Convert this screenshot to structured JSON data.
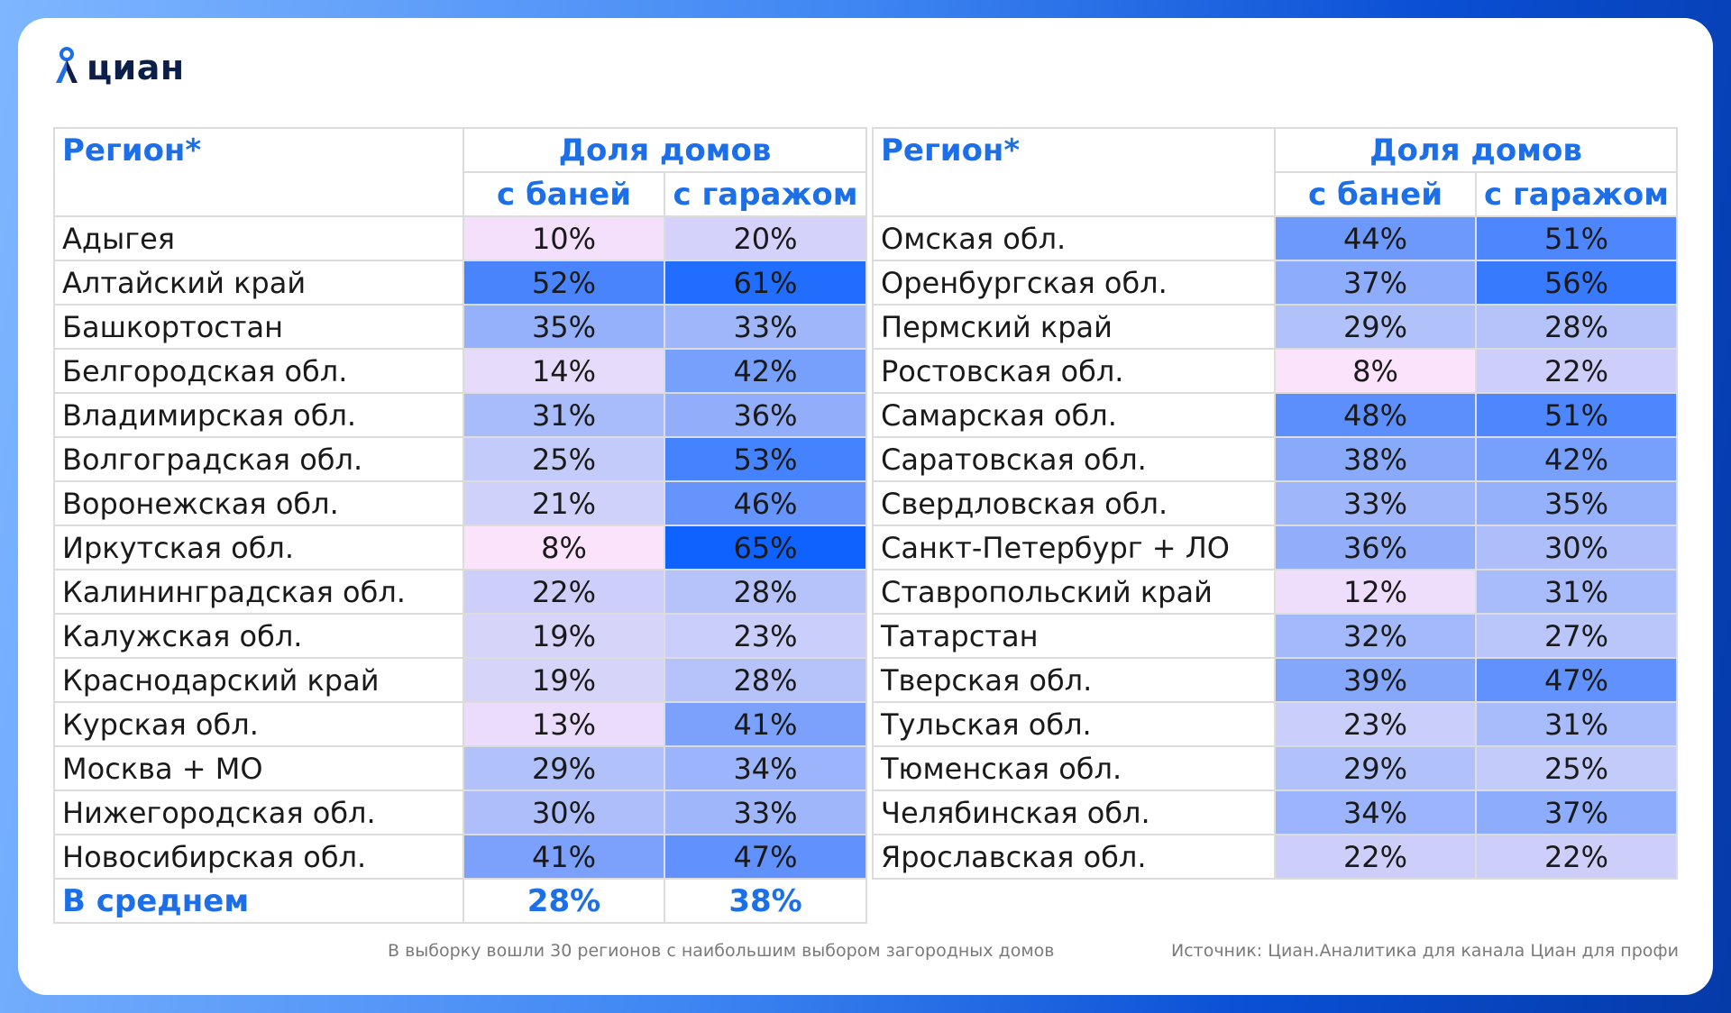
{
  "logo": {
    "text": "циан"
  },
  "header": {
    "region": "Регион*",
    "share": "Доля домов",
    "bath": "с баней",
    "garage": "с гаражом"
  },
  "chart_data": {
    "type": "table",
    "columns": [
      "Регион*",
      "с баней",
      "с гаражом"
    ],
    "group_header": "Доля домов",
    "left_rows": [
      {
        "region": "Адыгея",
        "bath": "10%",
        "garage": "20%"
      },
      {
        "region": "Алтайский край",
        "bath": "52%",
        "garage": "61%"
      },
      {
        "region": "Башкортостан",
        "bath": "35%",
        "garage": "33%"
      },
      {
        "region": "Белгородская обл.",
        "bath": "14%",
        "garage": "42%"
      },
      {
        "region": "Владимирская обл.",
        "bath": "31%",
        "garage": "36%"
      },
      {
        "region": "Волгоградская обл.",
        "bath": "25%",
        "garage": "53%"
      },
      {
        "region": "Воронежская обл.",
        "bath": "21%",
        "garage": "46%"
      },
      {
        "region": "Иркутская обл.",
        "bath": "8%",
        "garage": "65%"
      },
      {
        "region": "Калининградская обл.",
        "bath": "22%",
        "garage": "28%"
      },
      {
        "region": "Калужская обл.",
        "bath": "19%",
        "garage": "23%"
      },
      {
        "region": "Краснодарский край",
        "bath": "19%",
        "garage": "28%"
      },
      {
        "region": "Курская обл.",
        "bath": "13%",
        "garage": "41%"
      },
      {
        "region": "Москва + МО",
        "bath": "29%",
        "garage": "34%"
      },
      {
        "region": "Нижегородская обл.",
        "bath": "30%",
        "garage": "33%"
      },
      {
        "region": "Новосибирская обл.",
        "bath": "41%",
        "garage": "47%"
      }
    ],
    "average": {
      "region": "В среднем",
      "bath": "28%",
      "garage": "38%"
    },
    "right_rows": [
      {
        "region": "Омская обл.",
        "bath": "44%",
        "garage": "51%"
      },
      {
        "region": "Оренбургская обл.",
        "bath": "37%",
        "garage": "56%"
      },
      {
        "region": "Пермский край",
        "bath": "29%",
        "garage": "28%"
      },
      {
        "region": "Ростовская обл.",
        "bath": "8%",
        "garage": "22%"
      },
      {
        "region": "Самарская обл.",
        "bath": "48%",
        "garage": "51%"
      },
      {
        "region": "Саратовская обл.",
        "bath": "38%",
        "garage": "42%"
      },
      {
        "region": "Свердловская обл.",
        "bath": "33%",
        "garage": "35%"
      },
      {
        "region": "Санкт-Петербург + ЛО",
        "bath": "36%",
        "garage": "30%"
      },
      {
        "region": "Ставропольский край",
        "bath": "12%",
        "garage": "31%"
      },
      {
        "region": "Татарстан",
        "bath": "32%",
        "garage": "27%"
      },
      {
        "region": "Тверская обл.",
        "bath": "39%",
        "garage": "47%"
      },
      {
        "region": "Тульская обл.",
        "bath": "23%",
        "garage": "31%"
      },
      {
        "region": "Тюменская обл.",
        "bath": "29%",
        "garage": "25%"
      },
      {
        "region": "Челябинская обл.",
        "bath": "34%",
        "garage": "37%"
      },
      {
        "region": "Ярославская обл.",
        "bath": "22%",
        "garage": "22%"
      }
    ]
  },
  "colors": {
    "brand_blue": "#1c6fe8",
    "logo_dark": "#0b1f4a",
    "scale_low": "#fbe3fb",
    "scale_high": "#0f62fe"
  },
  "footnote": "В выборку вошли 30 регионов с наибольшим выбором загородных домов",
  "source": "Источник: Циан.Аналитика для канала Циан для профи"
}
